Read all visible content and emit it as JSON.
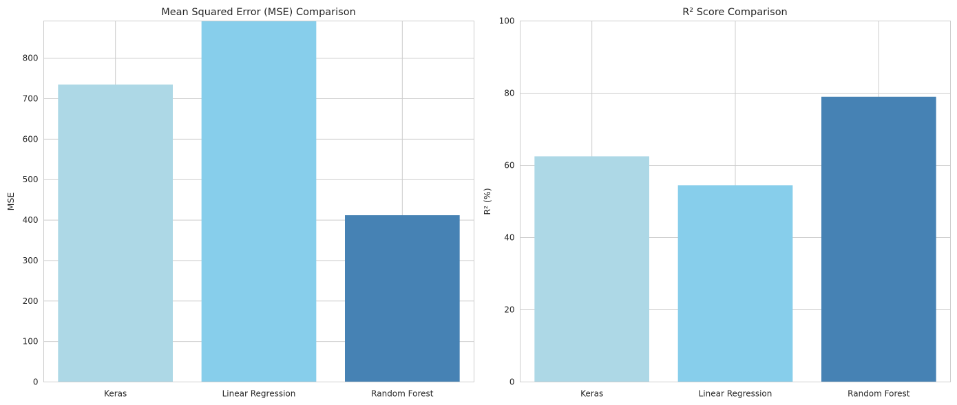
{
  "colors": {
    "bars": [
      "#add8e6",
      "#87ceeb",
      "#4682b4"
    ],
    "grid": "#cccccc",
    "background": "#ffffff"
  },
  "chart_data": [
    {
      "type": "bar",
      "title": "Mean Squared Error (MSE) Comparison",
      "xlabel": "",
      "ylabel": "MSE",
      "categories": [
        "Keras",
        "Linear Regression",
        "Random Forest"
      ],
      "values": [
        735,
        892,
        412
      ],
      "ylim": [
        0,
        892
      ],
      "yticks": [
        0,
        100,
        200,
        300,
        400,
        500,
        600,
        700,
        800
      ],
      "grid": true,
      "legend": "none"
    },
    {
      "type": "bar",
      "title": "R² Score Comparison",
      "xlabel": "",
      "ylabel": "R² (%)",
      "categories": [
        "Keras",
        "Linear Regression",
        "Random Forest"
      ],
      "values": [
        62.5,
        54.5,
        79
      ],
      "ylim": [
        0,
        100
      ],
      "yticks": [
        0,
        20,
        40,
        60,
        80,
        100
      ],
      "grid": true,
      "legend": "none"
    }
  ]
}
